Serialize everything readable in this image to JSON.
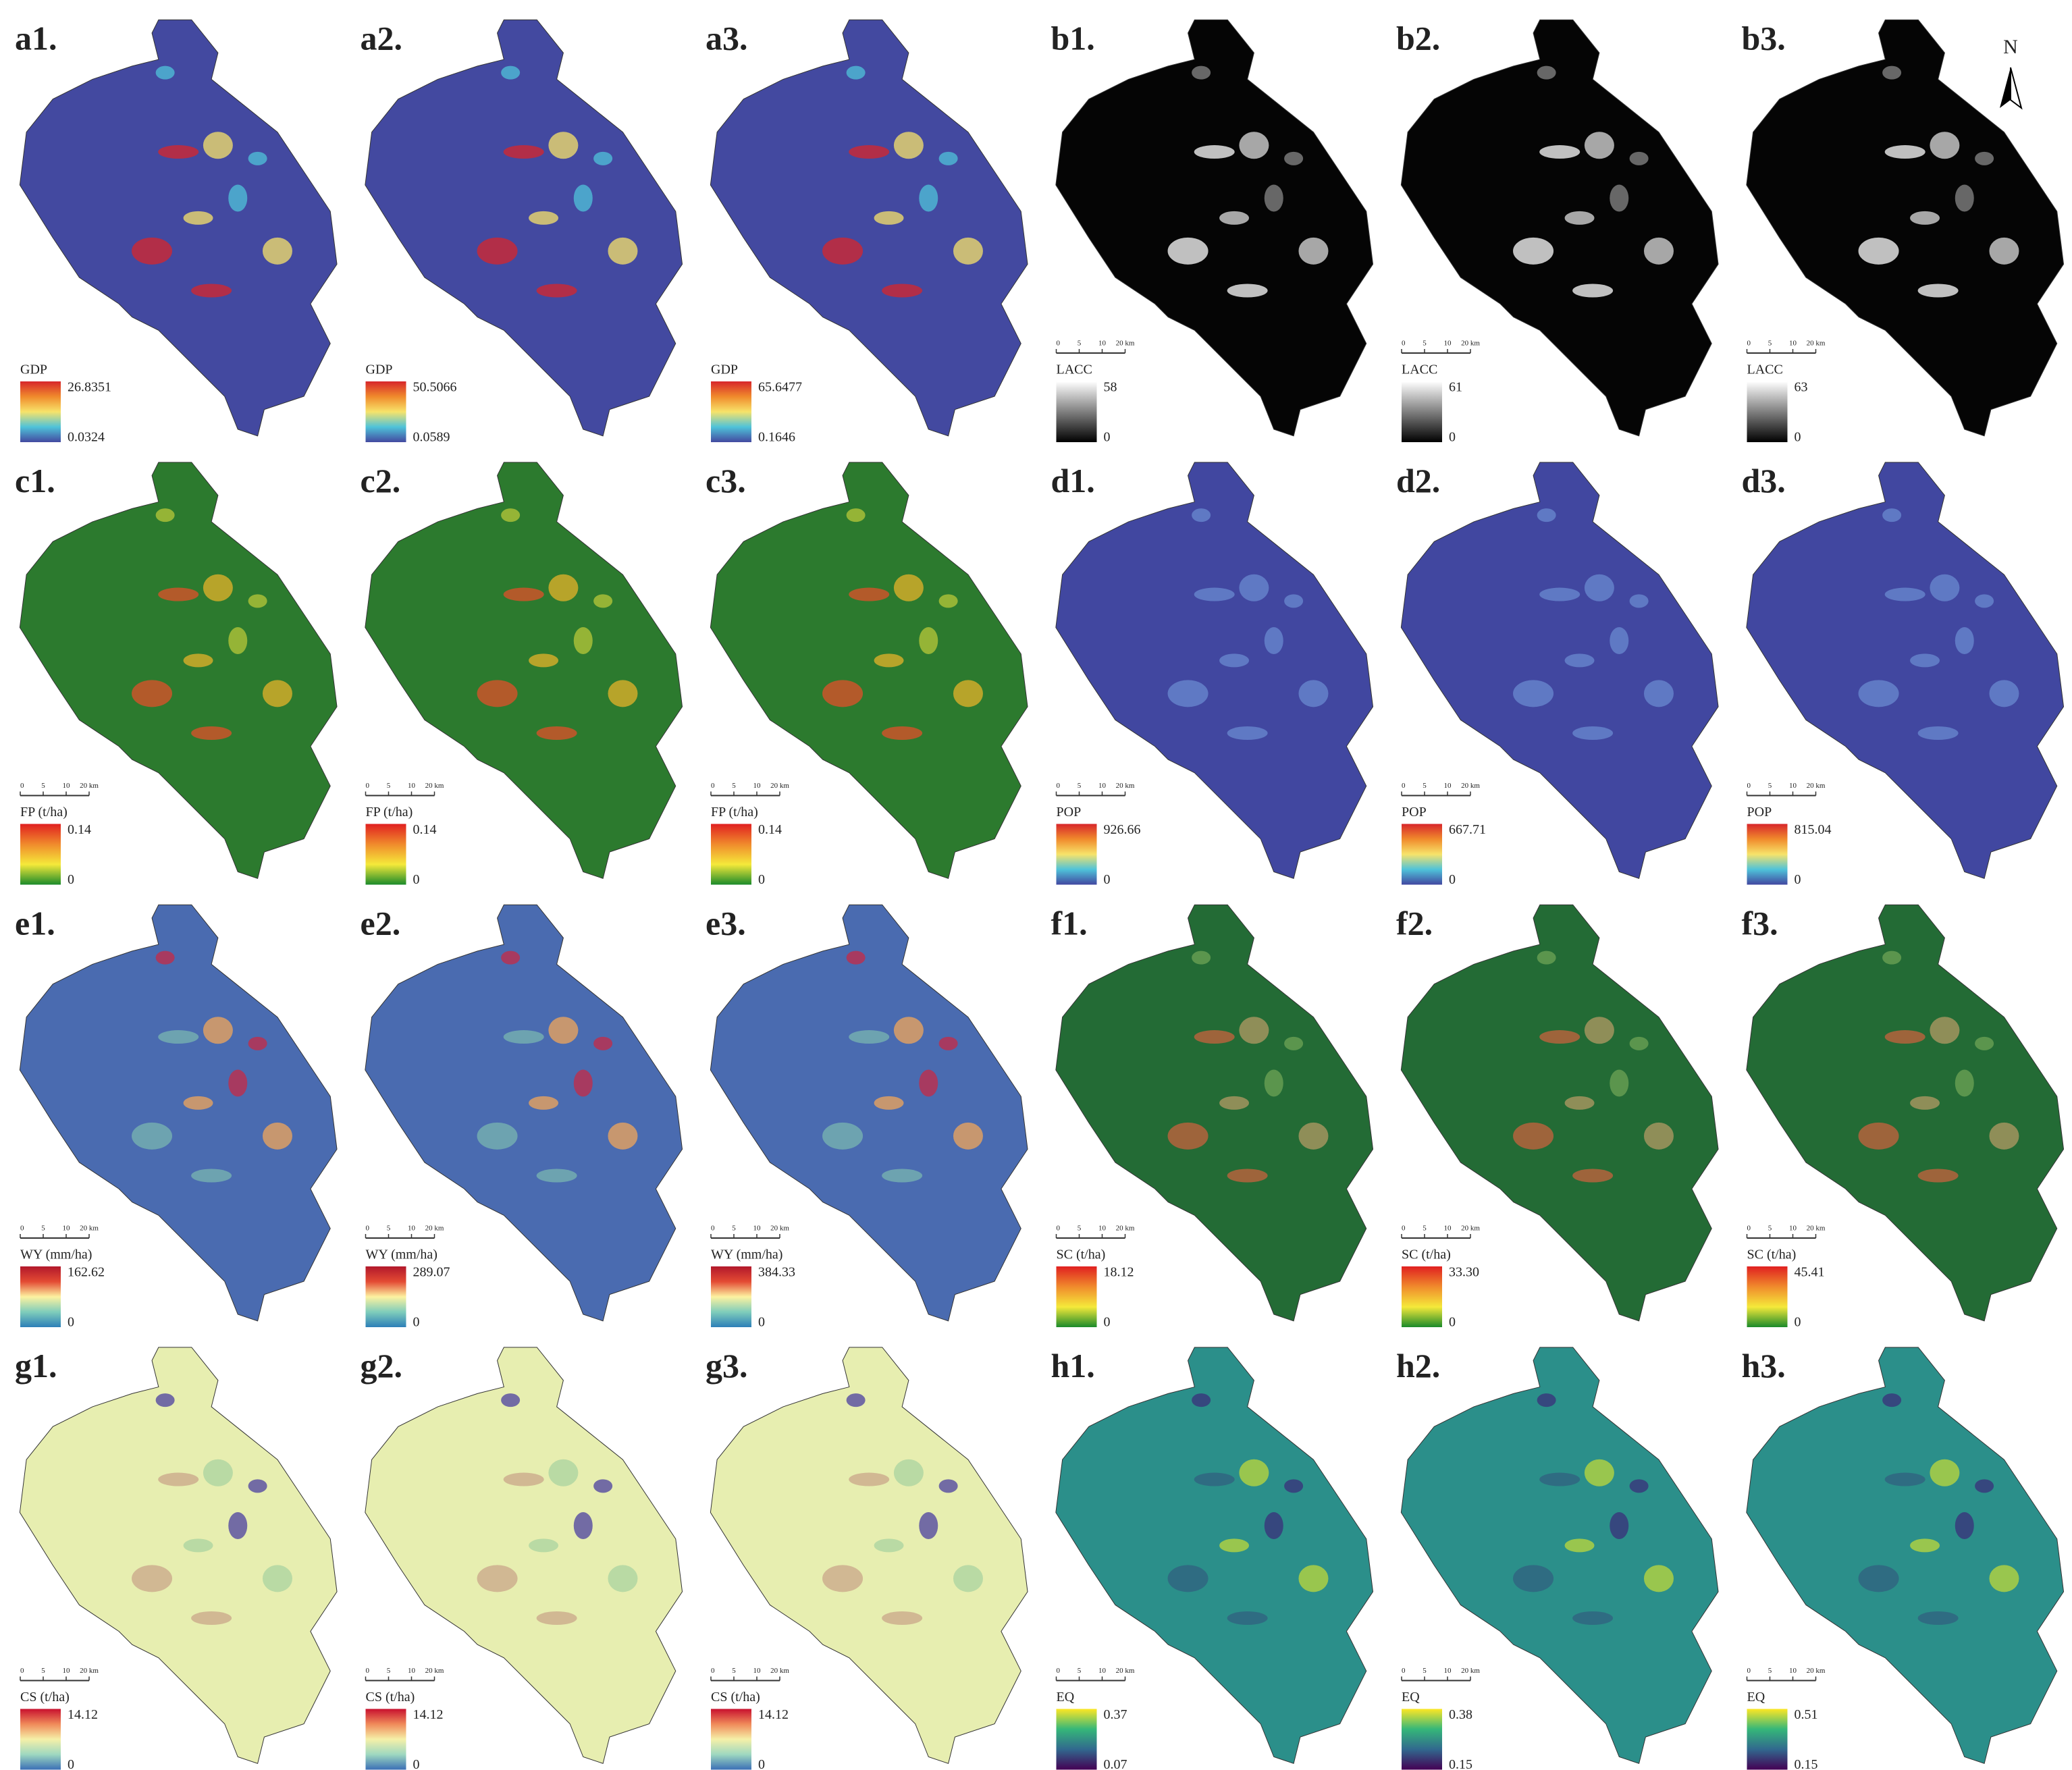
{
  "panels": [
    {
      "label": "a1.",
      "legend_title": "GDP",
      "legend_max": "26.8351",
      "legend_min": "0.0324"
    },
    {
      "label": "a2.",
      "legend_title": "GDP",
      "legend_max": "50.5066",
      "legend_min": "0.0589"
    },
    {
      "label": "a3.",
      "legend_title": "GDP",
      "legend_max": "65.6477",
      "legend_min": "0.1646"
    },
    {
      "label": "b1.",
      "legend_title": "LACC",
      "legend_max": "58",
      "legend_min": "0"
    },
    {
      "label": "b2.",
      "legend_title": "LACC",
      "legend_max": "61",
      "legend_min": "0"
    },
    {
      "label": "b3.",
      "legend_title": "LACC",
      "legend_max": "63",
      "legend_min": "0"
    },
    {
      "label": "c1.",
      "legend_title": "FP (t/ha)",
      "legend_max": "0.14",
      "legend_min": "0"
    },
    {
      "label": "c2.",
      "legend_title": "FP (t/ha)",
      "legend_max": "0.14",
      "legend_min": "0"
    },
    {
      "label": "c3.",
      "legend_title": "FP (t/ha)",
      "legend_max": "0.14",
      "legend_min": "0"
    },
    {
      "label": "d1.",
      "legend_title": "POP",
      "legend_max": "926.66",
      "legend_min": "0"
    },
    {
      "label": "d2.",
      "legend_title": "POP",
      "legend_max": "667.71",
      "legend_min": "0"
    },
    {
      "label": "d3.",
      "legend_title": "POP",
      "legend_max": "815.04",
      "legend_min": "0"
    },
    {
      "label": "e1.",
      "legend_title": "WY (mm/ha)",
      "legend_max": "162.62",
      "legend_min": "0"
    },
    {
      "label": "e2.",
      "legend_title": "WY (mm/ha)",
      "legend_max": "289.07",
      "legend_min": "0"
    },
    {
      "label": "e3.",
      "legend_title": "WY (mm/ha)",
      "legend_max": "384.33",
      "legend_min": "0"
    },
    {
      "label": "f1.",
      "legend_title": "SC (t/ha)",
      "legend_max": "18.12",
      "legend_min": "0"
    },
    {
      "label": "f2.",
      "legend_title": "SC (t/ha)",
      "legend_max": "33.30",
      "legend_min": "0"
    },
    {
      "label": "f3.",
      "legend_title": "SC (t/ha)",
      "legend_max": "45.41",
      "legend_min": "0"
    },
    {
      "label": "g1.",
      "legend_title": "CS (t/ha)",
      "legend_max": "14.12",
      "legend_min": "0"
    },
    {
      "label": "g2.",
      "legend_title": "CS (t/ha)",
      "legend_max": "14.12",
      "legend_min": "0"
    },
    {
      "label": "g3.",
      "legend_title": "CS (t/ha)",
      "legend_max": "14.12",
      "legend_min": "0"
    },
    {
      "label": "h1.",
      "legend_title": "EQ",
      "legend_max": "0.37",
      "legend_min": "0.07"
    },
    {
      "label": "h2.",
      "legend_title": "EQ",
      "legend_max": "0.38",
      "legend_min": "0.15"
    },
    {
      "label": "h3.",
      "legend_title": "EQ",
      "legend_max": "0.51",
      "legend_min": "0.15"
    }
  ],
  "scale_bar": [
    "0",
    "5",
    "10",
    "20 km"
  ],
  "north_arrow": "N"
}
